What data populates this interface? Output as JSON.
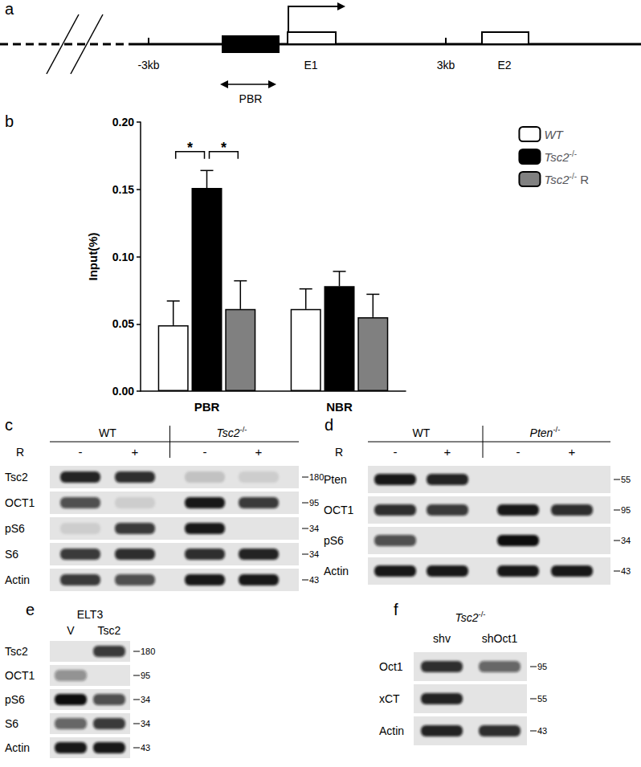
{
  "chart_data": {
    "type": "bar",
    "categories": [
      "PBR",
      "NBR"
    ],
    "y_label": "Input(%)",
    "ylim": [
      0,
      0.2
    ],
    "yticks": [
      {
        "value": 0,
        "label": "0.00"
      },
      {
        "value": 0.05,
        "label": "0.05"
      },
      {
        "value": 0.1,
        "label": "0.10"
      },
      {
        "value": 0.15,
        "label": "0.15"
      },
      {
        "value": 0.2,
        "label": "0.20"
      }
    ],
    "series": [
      {
        "name": "WT",
        "color": "#ffffff",
        "values": [
          0.049,
          0.061
        ],
        "errors": [
          0.018,
          0.015
        ]
      },
      {
        "name": "Tsc2-/-",
        "color": "#000000",
        "values": [
          0.151,
          0.078
        ],
        "errors": [
          0.013,
          0.011
        ]
      },
      {
        "name": "Tsc2-/- R",
        "color": "#808080",
        "values": [
          0.061,
          0.055
        ],
        "errors": [
          0.021,
          0.017
        ]
      }
    ],
    "significance": [
      {
        "category": "PBR",
        "from": "WT",
        "to": "Tsc2-/-",
        "y": 0.178,
        "label": "*"
      },
      {
        "category": "PBR",
        "from": "Tsc2-/-",
        "to": "Tsc2-/- R",
        "y": 0.178,
        "label": "*"
      }
    ],
    "legend": "right",
    "grid": false
  },
  "panel_labels": [
    "a",
    "b",
    "c",
    "d",
    "e",
    "f"
  ],
  "gene_diagram": {
    "labels": [
      "-3kb",
      "E1",
      "3kb",
      "E2"
    ],
    "region": "PBR"
  },
  "blots": [
    {
      "panel": "c",
      "groups": [
        {
          "label": "WT",
          "lanes": 2
        },
        {
          "label": "Tsc2-/-",
          "lanes": 2
        }
      ],
      "treatment": {
        "label": "R",
        "values": [
          "-",
          "+",
          "-",
          "+"
        ]
      },
      "rows": [
        {
          "label": "Tsc2",
          "mw": 180,
          "bands": [
            0.9,
            0.85,
            0.15,
            0.1
          ]
        },
        {
          "label": "OCT1",
          "mw": 95,
          "bands": [
            0.7,
            0.1,
            0.95,
            0.8
          ]
        },
        {
          "label": "pS6",
          "mw": 34,
          "bands": [
            0.1,
            0.8,
            0.95,
            0
          ]
        },
        {
          "label": "S6",
          "mw": 34,
          "bands": [
            0.8,
            0.85,
            0.85,
            0.9
          ]
        },
        {
          "label": "Actin",
          "mw": 43,
          "bands": [
            0.8,
            0.7,
            0.95,
            0.95
          ]
        }
      ]
    },
    {
      "panel": "d",
      "groups": [
        {
          "label": "WT",
          "lanes": 2
        },
        {
          "label": "Pten-/-",
          "lanes": 2
        }
      ],
      "treatment": {
        "label": "R",
        "values": [
          "-",
          "+",
          "-",
          "+"
        ]
      },
      "rows": [
        {
          "label": "Pten",
          "mw": 55,
          "bands": [
            0.95,
            0.9,
            0,
            0
          ]
        },
        {
          "label": "OCT1",
          "mw": 95,
          "bands": [
            0.85,
            0.8,
            0.95,
            0.85
          ]
        },
        {
          "label": "pS6",
          "mw": 34,
          "bands": [
            0.7,
            0,
            1,
            0
          ]
        },
        {
          "label": "Actin",
          "mw": 43,
          "bands": [
            0.95,
            0.95,
            0.95,
            0.95
          ]
        }
      ]
    },
    {
      "panel": "e",
      "title": "ELT3",
      "lanes": [
        "V",
        "Tsc2"
      ],
      "rows": [
        {
          "label": "Tsc2",
          "mw": 180,
          "bands": [
            0,
            0.8
          ]
        },
        {
          "label": "OCT1",
          "mw": 95,
          "bands": [
            0.4,
            0
          ]
        },
        {
          "label": "pS6",
          "mw": 34,
          "bands": [
            1,
            0.7
          ]
        },
        {
          "label": "S6",
          "mw": 34,
          "bands": [
            0.6,
            0.8
          ]
        },
        {
          "label": "Actin",
          "mw": 43,
          "bands": [
            0.95,
            0.95
          ]
        }
      ]
    },
    {
      "panel": "f",
      "title": "Tsc2-/-",
      "lanes": [
        "shv",
        "shOct1"
      ],
      "rows": [
        {
          "label": "Oct1",
          "mw": 95,
          "bands": [
            0.85,
            0.6
          ]
        },
        {
          "label": "xCT",
          "mw": 55,
          "bands": [
            0.9,
            0
          ]
        },
        {
          "label": "Actin",
          "mw": 43,
          "bands": [
            0.9,
            0.85
          ]
        }
      ]
    }
  ]
}
